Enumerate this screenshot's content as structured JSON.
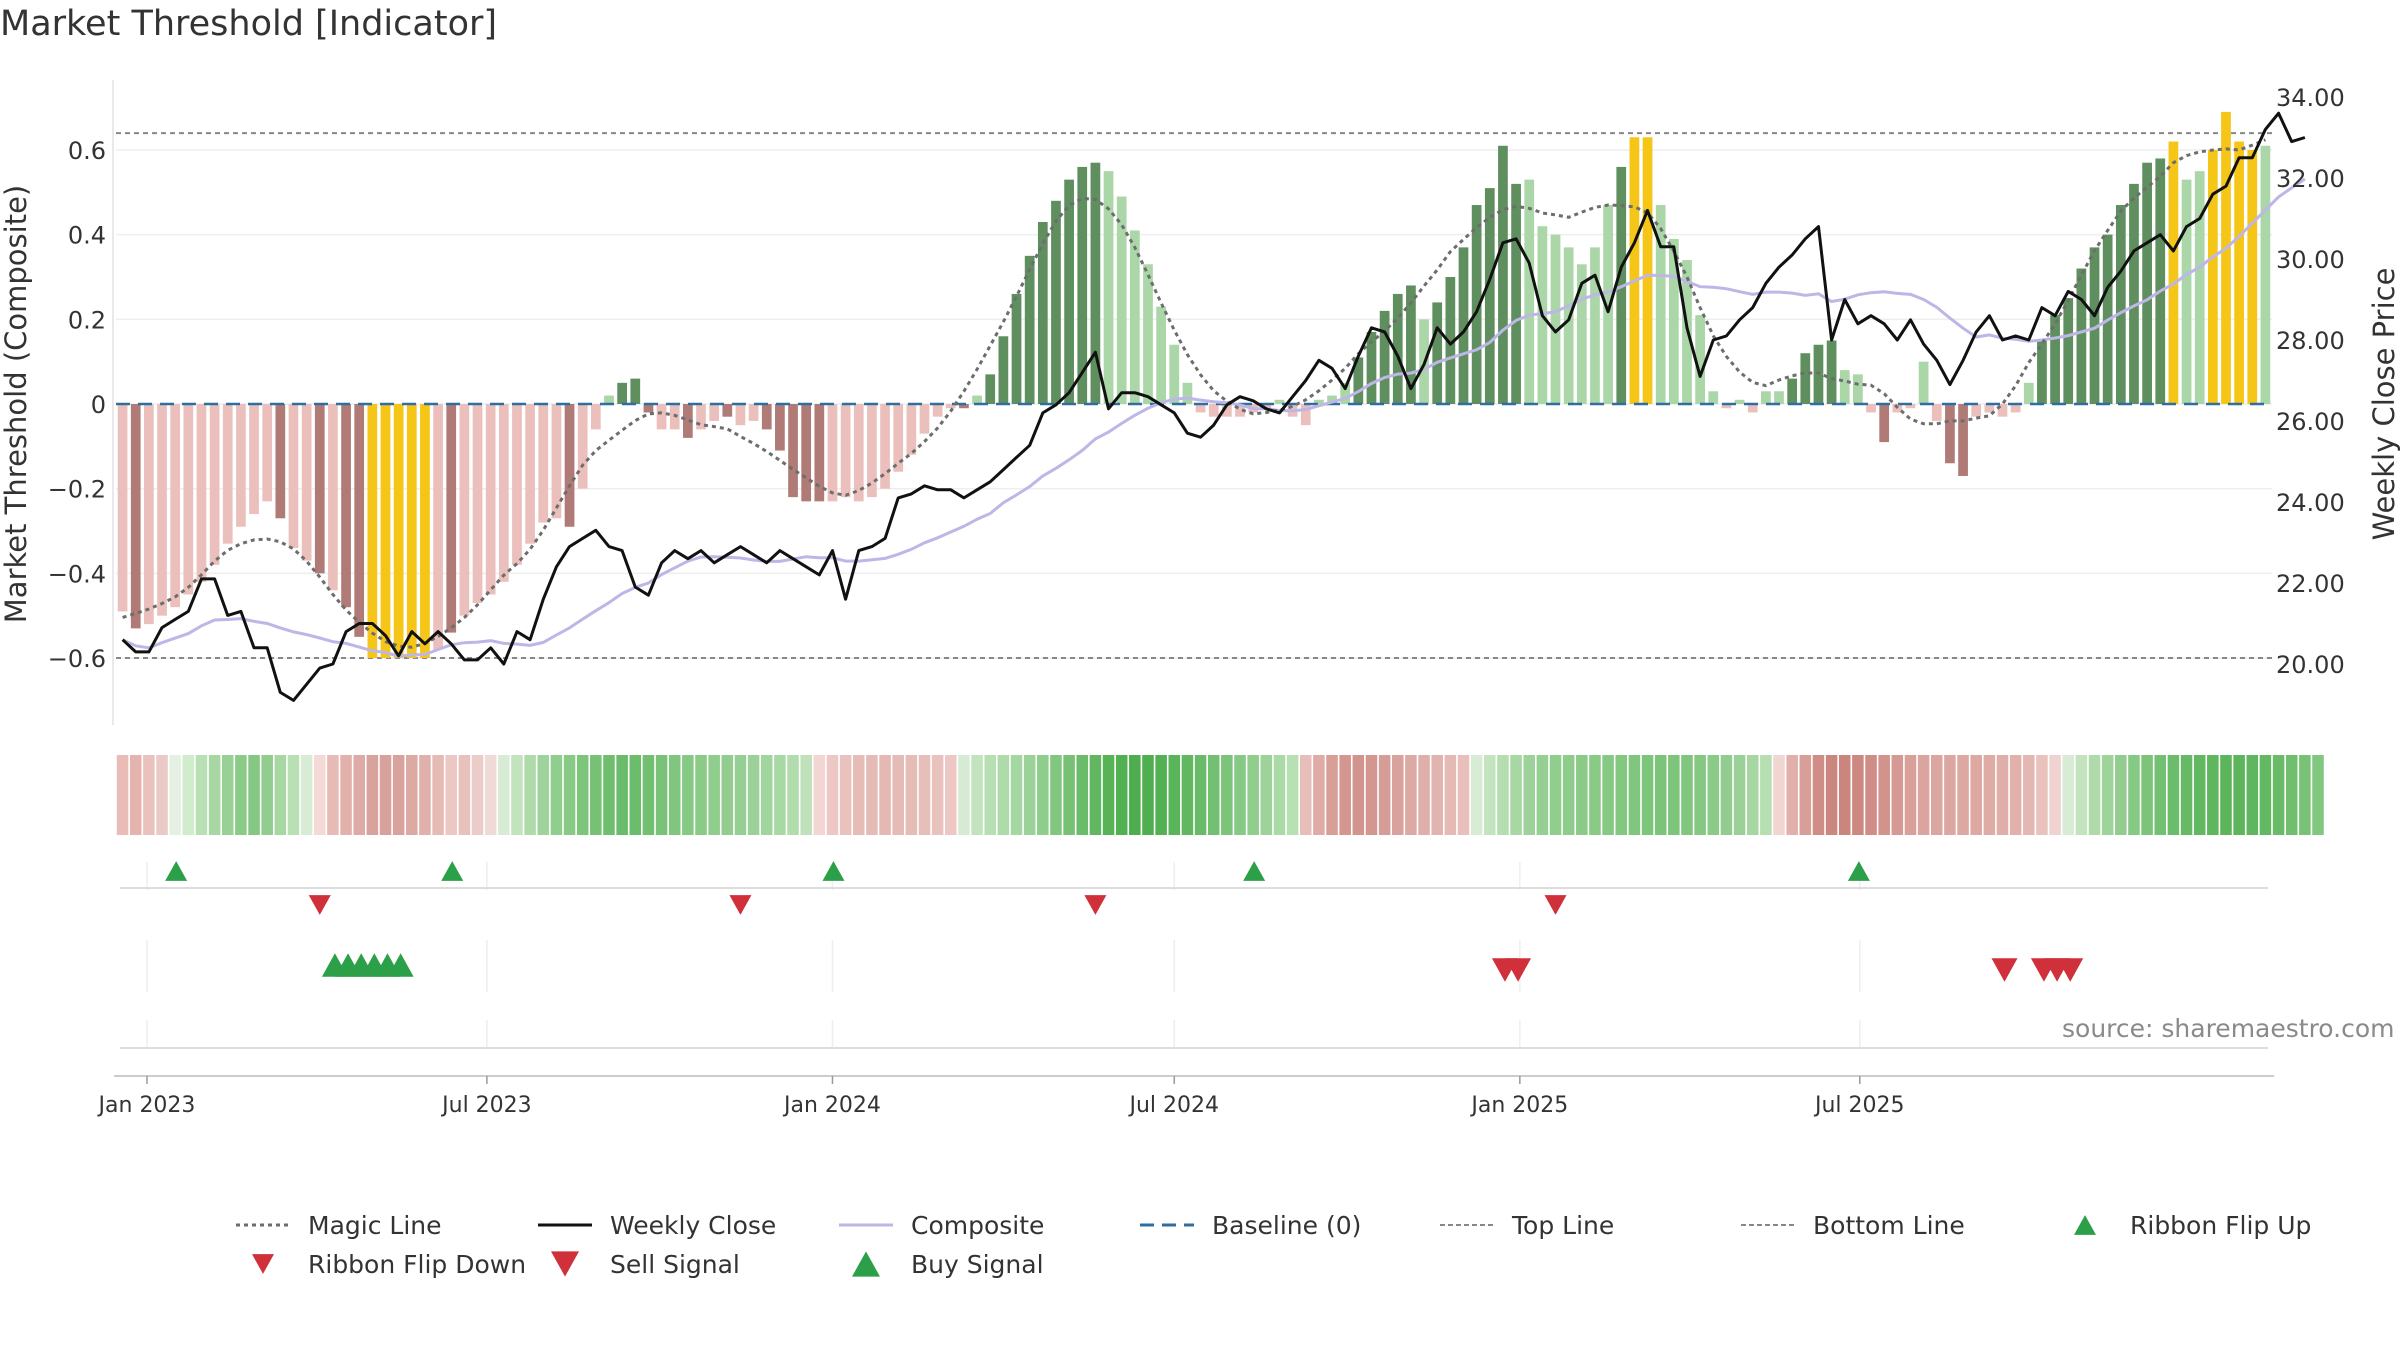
{
  "title": "Market Threshold [Indicator]",
  "source": "source: sharemaestro.com",
  "colors": {
    "strong_green": "#5f8f5f",
    "light_green": "#abd6a7",
    "strong_red": "#b07b76",
    "light_red": "#ebc0bc",
    "gold": "#f5c518",
    "magic": "#6d6d6d",
    "close": "#111111",
    "composite": "#bdb6e6",
    "baseline": "#2f6e9e",
    "threshold": "#888888",
    "up_marker": "#2ca048",
    "down_marker": "#d0303a"
  },
  "chart_data": {
    "type": "bar",
    "title": "Market Threshold [Indicator]",
    "ylabel": "Market Threshold (Composite)",
    "ylabel_right": "Weekly Close Price",
    "ylim": [
      -0.76,
      0.76
    ],
    "ylim_right": [
      18.6,
      34.4
    ],
    "y_ticks": [
      0.6,
      0.4,
      0.2,
      0,
      -0.2,
      -0.4,
      -0.6
    ],
    "y_tick_labels": [
      "0.6",
      "0.4",
      "0.2",
      "0",
      "−0.2",
      "−0.4",
      "−0.6"
    ],
    "y_right_ticks": [
      34,
      32,
      30,
      28,
      26,
      24,
      22,
      20
    ],
    "y_right_tick_labels": [
      "34.00",
      "32.00",
      "30.00",
      "28.00",
      "26.00",
      "24.00",
      "22.00",
      "20.00"
    ],
    "x_start": "2022-12-19",
    "x_ticks": [
      "2023-01-01",
      "2023-07-01",
      "2024-01-01",
      "2024-07-01",
      "2025-01-01",
      "2025-07-01"
    ],
    "x_tick_labels": [
      "Jan 2023",
      "Jul 2023",
      "Jan 2024",
      "Jul 2024",
      "Jan 2025",
      "Jul 2025"
    ],
    "top_line": 0.64,
    "bottom_line": -0.6,
    "baseline": 0,
    "composite_bars": [
      -0.49,
      -0.53,
      -0.52,
      -0.5,
      -0.48,
      -0.45,
      -0.42,
      -0.38,
      -0.33,
      -0.29,
      -0.26,
      -0.23,
      -0.27,
      -0.34,
      -0.37,
      -0.4,
      -0.44,
      -0.48,
      -0.55,
      -0.6,
      -0.6,
      -0.6,
      -0.6,
      -0.6,
      -0.58,
      -0.54,
      -0.5,
      -0.47,
      -0.45,
      -0.42,
      -0.38,
      -0.33,
      -0.28,
      -0.27,
      -0.29,
      -0.2,
      -0.06,
      0.02,
      0.05,
      0.06,
      -0.02,
      -0.06,
      -0.06,
      -0.08,
      -0.06,
      -0.04,
      -0.03,
      -0.05,
      -0.04,
      -0.06,
      -0.11,
      -0.22,
      -0.23,
      -0.23,
      -0.23,
      -0.22,
      -0.23,
      -0.22,
      -0.2,
      -0.16,
      -0.12,
      -0.07,
      -0.03,
      -0.01,
      -0.01,
      0.02,
      0.07,
      0.16,
      0.26,
      0.35,
      0.43,
      0.48,
      0.53,
      0.56,
      0.57,
      0.55,
      0.49,
      0.41,
      0.33,
      0.23,
      0.14,
      0.05,
      -0.02,
      -0.03,
      -0.03,
      -0.03,
      -0.02,
      -0.01,
      0.01,
      -0.03,
      -0.05,
      0.01,
      0.02,
      0.05,
      0.11,
      0.17,
      0.22,
      0.26,
      0.28,
      0.2,
      0.24,
      0.3,
      0.37,
      0.47,
      0.51,
      0.61,
      0.52,
      0.53,
      0.42,
      0.4,
      0.37,
      0.33,
      0.37,
      0.47,
      0.56,
      0.63,
      0.63,
      0.47,
      0.39,
      0.34,
      0.21,
      0.03,
      -0.01,
      0.01,
      -0.02,
      0.03,
      0.03,
      0.06,
      0.12,
      0.14,
      0.15,
      0.08,
      0.07,
      -0.02,
      -0.09,
      -0.02,
      -0.01,
      0.1,
      -0.04,
      -0.14,
      -0.17,
      -0.03,
      -0.02,
      -0.03,
      -0.02,
      0.05,
      0.15,
      0.21,
      0.25,
      0.32,
      0.37,
      0.4,
      0.47,
      0.52,
      0.57,
      0.58,
      0.62,
      0.53,
      0.55,
      0.6,
      0.69,
      0.62,
      0.6,
      0.61
    ],
    "bar_colors": [
      "light_red",
      "strong_red",
      "light_red",
      "light_red",
      "light_red",
      "light_red",
      "light_red",
      "light_red",
      "light_red",
      "light_red",
      "light_red",
      "light_red",
      "strong_red",
      "light_red",
      "light_red",
      "strong_red",
      "light_red",
      "strong_red",
      "strong_red",
      "gold",
      "gold",
      "gold",
      "gold",
      "gold",
      "light_red",
      "strong_red",
      "light_red",
      "light_red",
      "light_red",
      "light_red",
      "light_red",
      "light_red",
      "light_red",
      "light_red",
      "strong_red",
      "light_red",
      "light_red",
      "light_green",
      "strong_green",
      "strong_green",
      "strong_red",
      "light_red",
      "light_red",
      "strong_red",
      "light_red",
      "light_red",
      "strong_red",
      "light_red",
      "light_red",
      "strong_red",
      "strong_red",
      "strong_red",
      "strong_red",
      "strong_red",
      "light_red",
      "light_red",
      "light_red",
      "light_red",
      "light_red",
      "light_red",
      "light_red",
      "light_red",
      "light_red",
      "light_red",
      "strong_red",
      "light_green",
      "strong_green",
      "strong_green",
      "strong_green",
      "strong_green",
      "strong_green",
      "strong_green",
      "strong_green",
      "strong_green",
      "strong_green",
      "light_green",
      "light_green",
      "light_green",
      "light_green",
      "light_green",
      "light_green",
      "light_green",
      "light_red",
      "light_red",
      "light_red",
      "light_red",
      "light_red",
      "light_red",
      "light_green",
      "light_red",
      "light_red",
      "light_green",
      "light_green",
      "light_green",
      "strong_green",
      "strong_green",
      "strong_green",
      "strong_green",
      "strong_green",
      "light_green",
      "strong_green",
      "strong_green",
      "strong_green",
      "strong_green",
      "strong_green",
      "strong_green",
      "strong_green",
      "light_green",
      "light_green",
      "light_green",
      "light_green",
      "light_green",
      "light_green",
      "light_green",
      "strong_green",
      "gold",
      "gold",
      "light_green",
      "light_green",
      "light_green",
      "light_green",
      "light_green",
      "light_red",
      "light_green",
      "light_red",
      "light_green",
      "light_green",
      "strong_green",
      "strong_green",
      "strong_green",
      "strong_green",
      "light_green",
      "light_green",
      "light_red",
      "strong_red",
      "light_red",
      "light_red",
      "light_green",
      "light_red",
      "strong_red",
      "strong_red",
      "light_red",
      "light_red",
      "light_red",
      "light_red",
      "light_green",
      "strong_green",
      "strong_green",
      "strong_green",
      "strong_green",
      "strong_green",
      "strong_green",
      "strong_green",
      "strong_green",
      "strong_green",
      "strong_green",
      "gold",
      "light_green",
      "light_green",
      "gold",
      "gold",
      "gold",
      "gold",
      "light_green"
    ],
    "weekly_close": [
      20.6,
      20.3,
      20.3,
      20.9,
      21.1,
      21.3,
      22.1,
      22.1,
      21.2,
      21.3,
      20.4,
      20.4,
      19.3,
      19.1,
      19.5,
      19.9,
      20.0,
      20.8,
      21.0,
      21.0,
      20.7,
      20.2,
      20.8,
      20.5,
      20.8,
      20.5,
      20.1,
      20.1,
      20.4,
      20.0,
      20.8,
      20.6,
      21.6,
      22.4,
      22.9,
      23.1,
      23.3,
      22.9,
      22.8,
      21.9,
      21.7,
      22.5,
      22.8,
      22.6,
      22.8,
      22.5,
      22.7,
      22.9,
      22.7,
      22.5,
      22.8,
      22.6,
      22.4,
      22.2,
      22.8,
      21.6,
      22.8,
      22.9,
      23.1,
      24.1,
      24.2,
      24.4,
      24.3,
      24.3,
      24.1,
      24.3,
      24.5,
      24.8,
      25.1,
      25.4,
      26.2,
      26.4,
      26.7,
      27.2,
      27.7,
      26.3,
      26.7,
      26.7,
      26.6,
      26.4,
      26.2,
      25.7,
      25.6,
      25.9,
      26.4,
      26.6,
      26.5,
      26.3,
      26.2,
      26.6,
      27.0,
      27.5,
      27.3,
      26.8,
      27.6,
      28.3,
      28.2,
      27.6,
      26.8,
      27.4,
      28.3,
      27.9,
      28.2,
      28.7,
      29.5,
      30.4,
      30.5,
      29.9,
      28.6,
      28.2,
      28.5,
      29.4,
      29.6,
      28.7,
      29.8,
      30.4,
      31.2,
      30.3,
      30.3,
      28.3,
      27.1,
      28.0,
      28.1,
      28.5,
      28.8,
      29.4,
      29.8,
      30.1,
      30.5,
      30.8,
      28.0,
      29.0,
      28.4,
      28.6,
      28.4,
      28.0,
      28.5,
      27.9,
      27.5,
      26.9,
      27.5,
      28.2,
      28.6,
      28.0,
      28.1,
      28.0,
      28.8,
      28.6,
      29.2,
      29.0,
      28.6,
      29.3,
      29.7,
      30.2,
      30.4,
      30.6,
      30.2,
      30.8,
      31.0,
      31.6,
      31.8,
      32.5,
      32.5,
      33.2,
      33.6,
      32.9,
      33.0
    ]
  },
  "ribbon": {
    "colors": [
      "#e9bcb8",
      "#e4b3ae",
      "#e9c2be",
      "#eacac6",
      "#e4f1e2",
      "#d1ebcd",
      "#b9e0b5",
      "#a7d8a3",
      "#98d095",
      "#8bcb88",
      "#85c883",
      "#92cd8f",
      "#a7d8a3",
      "#b9e0b5",
      "#d8ecd5",
      "#f4d9d6",
      "#e6bab5",
      "#e2b1ac",
      "#ddaaa5",
      "#d9a39d",
      "#d8a19b",
      "#d9a39d",
      "#dca9a3",
      "#e0b0ab",
      "#e6bab5",
      "#ecc7c3",
      "#e8c1bd",
      "#ecccc8",
      "#f0dad7",
      "#d8ecd5",
      "#c2e3be",
      "#aedba9",
      "#9ed39b",
      "#90ce8d",
      "#87c985",
      "#7ec57c",
      "#76c174",
      "#6fbe6e",
      "#6bbc6a",
      "#6cbd6b",
      "#71bf70",
      "#79c277",
      "#80c67e",
      "#86c984",
      "#8bcb88",
      "#8fcd8c",
      "#92cd8f",
      "#96cf93",
      "#9bd198",
      "#a1d59e",
      "#a8d9a5",
      "#b1ddad",
      "#bfe2bb",
      "#f3d6d3",
      "#ecc7c3",
      "#e9c2be",
      "#e6bcb7",
      "#e5bbb6",
      "#e4b9b4",
      "#e5bbb6",
      "#e6bcb7",
      "#e7bfba",
      "#e9c2be",
      "#ecc7c3",
      "#d6ebd3",
      "#c2e3be",
      "#b6dfb2",
      "#aedba9",
      "#a4d7a1",
      "#9ad297",
      "#8ecd8b",
      "#82c780",
      "#76c174",
      "#6bbc6a",
      "#60b75f",
      "#58b357",
      "#52af52",
      "#4ead4e",
      "#4fae4f",
      "#53b053",
      "#5ab459",
      "#62b861",
      "#6abb69",
      "#73c072",
      "#7cc47a",
      "#86c984",
      "#91ce8e",
      "#9dd39a",
      "#aadaa6",
      "#b7e0b3",
      "#e7bfba",
      "#dfaba5",
      "#d89e98",
      "#d39690",
      "#d2948e",
      "#d39690",
      "#d69c96",
      "#d9a29c",
      "#dca9a3",
      "#dfafa9",
      "#e2b4af",
      "#e5b9b4",
      "#e8bfba",
      "#d7ecd4",
      "#c4e4c0",
      "#b4deb0",
      "#a7d8a3",
      "#9dd39a",
      "#95cf92",
      "#90ce8d",
      "#8dcc8a",
      "#8bcb88",
      "#89ca87",
      "#86c984",
      "#83c881",
      "#80c67e",
      "#7dc57b",
      "#7cc47a",
      "#7dc57b",
      "#80c67e",
      "#84c882",
      "#8acb87",
      "#92cd8f",
      "#9bd198",
      "#a6d7a2",
      "#b5dfb1",
      "#f0d5d1",
      "#e2b0aa",
      "#d89e98",
      "#d08d87",
      "#cc8680",
      "#cb857f",
      "#cd8882",
      "#d08d87",
      "#d3938d",
      "#d69993",
      "#d99f99",
      "#dba49e",
      "#dca6a0",
      "#dca7a1",
      "#dda8a2",
      "#dea9a3",
      "#dfaba5",
      "#e0aea8",
      "#e2b1ac",
      "#e5b7b2",
      "#e9c2be",
      "#f0d3d0",
      "#d8ecd5",
      "#c2e3be",
      "#afdbab",
      "#9fd39c",
      "#92cd8f",
      "#86c984",
      "#7cc47a",
      "#73c072",
      "#6cbd6b",
      "#66ba65",
      "#61b860",
      "#5eb65d",
      "#5cb55b",
      "#5cb55b",
      "#5fb65e",
      "#63b962",
      "#69bb68",
      "#70bf6f",
      "#78c276",
      "#81c77f"
    ]
  },
  "signals": {
    "ribbon_flip_up_weeks": [
      4,
      25,
      54,
      86,
      132
    ],
    "ribbon_flip_down_weeks": [
      15,
      47,
      74,
      109
    ],
    "buy_signal_weeks": [
      16,
      17,
      18,
      19,
      20,
      21
    ],
    "sell_signal_weeks": [
      105,
      106,
      143,
      146,
      147,
      148
    ]
  },
  "legend": [
    {
      "label": "Magic Line",
      "kind": "dotted",
      "color": "magic"
    },
    {
      "label": "Weekly Close",
      "kind": "solid",
      "color": "close"
    },
    {
      "label": "Composite",
      "kind": "solid-light",
      "color": "composite"
    },
    {
      "label": "Baseline (0)",
      "kind": "dashed",
      "color": "baseline"
    },
    {
      "label": "Top Line",
      "kind": "dashed-grey",
      "color": "threshold"
    },
    {
      "label": "Bottom Line",
      "kind": "dashed-grey",
      "color": "threshold"
    },
    {
      "label": "Ribbon Flip Up",
      "kind": "up",
      "color": "up_marker"
    },
    {
      "label": "Ribbon Flip Down",
      "kind": "down",
      "color": "down_marker"
    },
    {
      "label": "Sell Signal",
      "kind": "down-large",
      "color": "down_marker"
    },
    {
      "label": "Buy Signal",
      "kind": "up-large",
      "color": "up_marker"
    }
  ]
}
